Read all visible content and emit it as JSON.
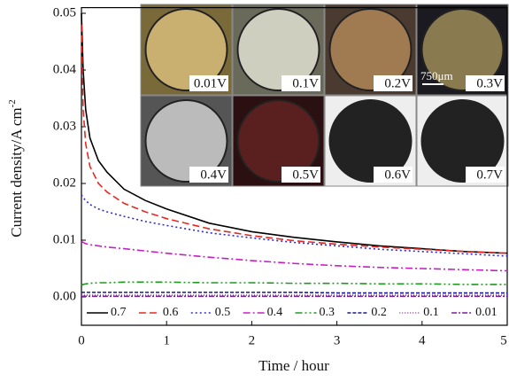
{
  "chart_data": {
    "type": "line",
    "x_label": "Time / hour",
    "y_label": "Current density/A cm",
    "y_label_sup": "-2",
    "x": [
      0,
      0.02,
      0.05,
      0.1,
      0.2,
      0.3,
      0.5,
      0.75,
      1,
      1.5,
      2,
      2.5,
      3,
      3.5,
      4,
      4.5,
      5
    ],
    "series": [
      {
        "name": "0.7",
        "color": "#000000",
        "dash": "none",
        "values": [
          0.05,
          0.04,
          0.033,
          0.028,
          0.024,
          0.022,
          0.019,
          0.017,
          0.0155,
          0.013,
          0.0115,
          0.0105,
          0.0097,
          0.009,
          0.0085,
          0.008,
          0.0077
        ]
      },
      {
        "name": "0.6",
        "color": "#e8281e",
        "dash": "8,4",
        "values": [
          0.048,
          0.033,
          0.027,
          0.023,
          0.02,
          0.0185,
          0.0165,
          0.015,
          0.0138,
          0.012,
          0.0108,
          0.0099,
          0.0093,
          0.0088,
          0.0084,
          0.008,
          0.0077
        ]
      },
      {
        "name": "0.5",
        "color": "#2a2ad8",
        "dash": "2,3",
        "values": [
          0.018,
          0.0175,
          0.017,
          0.0163,
          0.0155,
          0.015,
          0.0142,
          0.0133,
          0.0126,
          0.0113,
          0.0104,
          0.0096,
          0.009,
          0.0084,
          0.008,
          0.0076,
          0.0072
        ]
      },
      {
        "name": "0.4",
        "color": "#c81ec8",
        "dash": "8,3,2,3",
        "values": [
          0.0098,
          0.0096,
          0.0094,
          0.0092,
          0.009,
          0.0088,
          0.0085,
          0.0081,
          0.0077,
          0.007,
          0.0064,
          0.0059,
          0.0055,
          0.0052,
          0.005,
          0.0048,
          0.0046
        ]
      },
      {
        "name": "0.3",
        "color": "#1e9a1e",
        "dash": "8,3,2,3,2,3",
        "values": [
          0.002,
          0.0022,
          0.0023,
          0.0024,
          0.0025,
          0.0025,
          0.0026,
          0.0026,
          0.0026,
          0.0025,
          0.0025,
          0.0024,
          0.0024,
          0.0023,
          0.0023,
          0.0022,
          0.0022
        ]
      },
      {
        "name": "0.2",
        "color": "#1a1a8c",
        "dash": "4,2",
        "values": [
          0.0008,
          0.0008,
          0.0008,
          0.0008,
          0.0008,
          0.0008,
          0.0008,
          0.0008,
          0.0008,
          0.0008,
          0.0008,
          0.0008,
          0.0007,
          0.0007,
          0.0007,
          0.0007,
          0.0007
        ]
      },
      {
        "name": "0.1",
        "color": "#8c3ca0",
        "dash": "1,2",
        "values": [
          0.0003,
          0.0003,
          0.0003,
          0.0003,
          0.0003,
          0.0003,
          0.0003,
          0.0003,
          0.0003,
          0.0003,
          0.0003,
          0.0003,
          0.0003,
          0.0003,
          0.0003,
          0.0003,
          0.0003
        ]
      },
      {
        "name": "0.01",
        "color": "#7a1e9a",
        "dash": "6,2,2,2",
        "values": [
          0.0001,
          0.0001,
          0.0001,
          0.0001,
          0.0001,
          0.0001,
          0.0001,
          0.0001,
          0.0001,
          0.0001,
          0.0001,
          0.0001,
          0.0001,
          0.0001,
          0.0001,
          0.0001,
          0.0001
        ]
      }
    ],
    "xlim": [
      0,
      5
    ],
    "xticks": [
      0,
      1,
      2,
      3,
      4,
      5
    ],
    "ylim": [
      -0.005,
      0.051
    ],
    "yticks": [
      {
        "value": 0,
        "label": "0.00"
      },
      {
        "value": 0.01,
        "label": "0.01"
      },
      {
        "value": 0.02,
        "label": "0.02"
      },
      {
        "value": 0.03,
        "label": "0.03"
      },
      {
        "value": 0.04,
        "label": "0.04"
      },
      {
        "value": 0.05,
        "label": "0.05"
      }
    ],
    "legend": "bottom",
    "inset_labels": [
      "0.01V",
      "0.1V",
      "0.2V",
      "0.3V",
      "0.4V",
      "0.5V",
      "0.6V",
      "0.7V"
    ],
    "scale_bar": "750μm"
  }
}
